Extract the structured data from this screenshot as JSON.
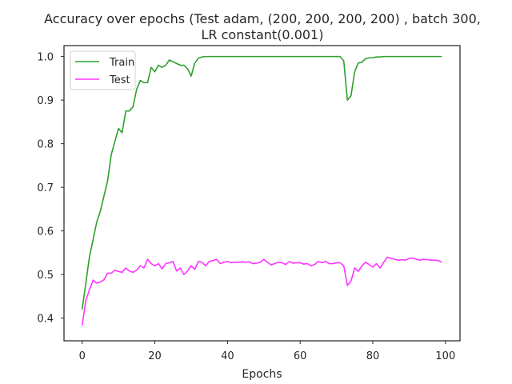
{
  "chart_data": {
    "type": "line",
    "title": "Accuracy over epochs (Test adam, (200, 200, 200, 200) , batch 300,",
    "subtitle": "LR constant(0.001)",
    "xlabel": "Epochs",
    "ylabel": "",
    "xlim": [
      -5,
      104
    ],
    "ylim": [
      0.348,
      1.025
    ],
    "x_ticks": [
      0,
      20,
      40,
      60,
      80,
      100
    ],
    "x_tick_labels": [
      "0",
      "20",
      "40",
      "60",
      "80",
      "100"
    ],
    "y_ticks": [
      0.4,
      0.5,
      0.6,
      0.7,
      0.8,
      0.9,
      1.0
    ],
    "y_tick_labels": [
      "0.4",
      "0.5",
      "0.6",
      "0.7",
      "0.8",
      "0.9",
      "1.0"
    ],
    "grid": false,
    "legend_position": "upper-left",
    "x": [
      0,
      1,
      2,
      3,
      4,
      5,
      6,
      7,
      8,
      9,
      10,
      11,
      12,
      13,
      14,
      15,
      16,
      17,
      18,
      19,
      20,
      21,
      22,
      23,
      24,
      25,
      26,
      27,
      28,
      29,
      30,
      31,
      32,
      33,
      34,
      35,
      36,
      37,
      38,
      39,
      40,
      41,
      42,
      43,
      44,
      45,
      46,
      47,
      48,
      49,
      50,
      51,
      52,
      53,
      54,
      55,
      56,
      57,
      58,
      59,
      60,
      61,
      62,
      63,
      64,
      65,
      66,
      67,
      68,
      69,
      70,
      71,
      72,
      73,
      74,
      75,
      76,
      77,
      78,
      79,
      80,
      81,
      82,
      83,
      84,
      85,
      86,
      87,
      88,
      89,
      90,
      91,
      92,
      93,
      94,
      95,
      96,
      97,
      98,
      99
    ],
    "series": [
      {
        "name": "Train",
        "color": "#2ca02c",
        "values": [
          0.42,
          0.48,
          0.54,
          0.58,
          0.62,
          0.645,
          0.68,
          0.715,
          0.775,
          0.805,
          0.835,
          0.825,
          0.875,
          0.875,
          0.885,
          0.925,
          0.945,
          0.94,
          0.94,
          0.975,
          0.965,
          0.98,
          0.975,
          0.98,
          0.992,
          0.988,
          0.984,
          0.98,
          0.98,
          0.972,
          0.955,
          0.985,
          0.996,
          0.999,
          1.0,
          1.0,
          1.0,
          1.0,
          1.0,
          1.0,
          1.0,
          1.0,
          1.0,
          1.0,
          1.0,
          1.0,
          1.0,
          1.0,
          1.0,
          1.0,
          1.0,
          1.0,
          1.0,
          1.0,
          1.0,
          1.0,
          1.0,
          1.0,
          1.0,
          1.0,
          1.0,
          1.0,
          1.0,
          1.0,
          1.0,
          1.0,
          1.0,
          1.0,
          1.0,
          1.0,
          1.0,
          1.0,
          0.99,
          0.9,
          0.91,
          0.965,
          0.985,
          0.987,
          0.995,
          0.997,
          0.997,
          0.999,
          0.999,
          1.0,
          1.0,
          1.0,
          1.0,
          1.0,
          1.0,
          1.0,
          1.0,
          1.0,
          1.0,
          1.0,
          1.0,
          1.0,
          1.0,
          1.0,
          1.0,
          1.0
        ]
      },
      {
        "name": "Test",
        "color": "#ff33ff",
        "values": [
          0.383,
          0.44,
          0.465,
          0.487,
          0.48,
          0.483,
          0.488,
          0.503,
          0.503,
          0.51,
          0.507,
          0.505,
          0.515,
          0.508,
          0.505,
          0.51,
          0.52,
          0.515,
          0.535,
          0.525,
          0.52,
          0.525,
          0.513,
          0.525,
          0.527,
          0.53,
          0.508,
          0.515,
          0.5,
          0.508,
          0.52,
          0.512,
          0.53,
          0.528,
          0.52,
          0.53,
          0.532,
          0.535,
          0.525,
          0.528,
          0.53,
          0.527,
          0.528,
          0.528,
          0.529,
          0.528,
          0.529,
          0.525,
          0.526,
          0.528,
          0.535,
          0.528,
          0.522,
          0.525,
          0.528,
          0.527,
          0.523,
          0.53,
          0.526,
          0.527,
          0.527,
          0.524,
          0.525,
          0.52,
          0.523,
          0.53,
          0.527,
          0.53,
          0.525,
          0.525,
          0.527,
          0.527,
          0.52,
          0.475,
          0.485,
          0.515,
          0.507,
          0.52,
          0.528,
          0.523,
          0.517,
          0.525,
          0.515,
          0.528,
          0.54,
          0.537,
          0.535,
          0.533,
          0.534,
          0.533,
          0.537,
          0.538,
          0.535,
          0.533,
          0.535,
          0.534,
          0.533,
          0.533,
          0.532,
          0.528
        ]
      }
    ]
  }
}
